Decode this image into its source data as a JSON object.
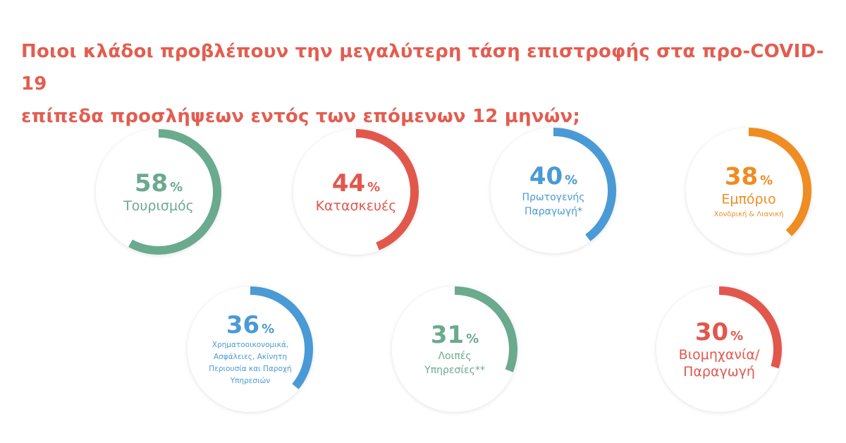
{
  "chart_data": {
    "type": "gauge",
    "title": "Ποιοι κλάδοι προβλέπουν την μεγαλύτερη τάση επιστροφής στα προ-COVID-19\nεπίπεδα προσλήψεων εντός των επόμενων 12 μηνών;",
    "categories": [
      "Τουρισμός",
      "Κατασκευές",
      "Πρωτογενής\nΠαραγωγή*",
      "Εμπόριο",
      "Χρηματοοικονομικά,\nΑσφάλειες, Ακίνητη\nΠεριουσία και Παροχή\nΥπηρεσιών",
      "Λοιπές\nΥπηρεσίες**",
      "Βιομηχανία/\nΠαραγωγή"
    ],
    "sublabels": [
      null,
      null,
      null,
      "Χονδρική & Λιανική",
      null,
      null,
      null
    ],
    "values": [
      58,
      44,
      40,
      38,
      36,
      31,
      30
    ],
    "unit": "%",
    "ylim": [
      0,
      100
    ],
    "colors": [
      "#6aaa8e",
      "#e2574c",
      "#4a9ad6",
      "#ef8c22",
      "#4a9ad6",
      "#6aaa8e",
      "#e2574c"
    ]
  }
}
